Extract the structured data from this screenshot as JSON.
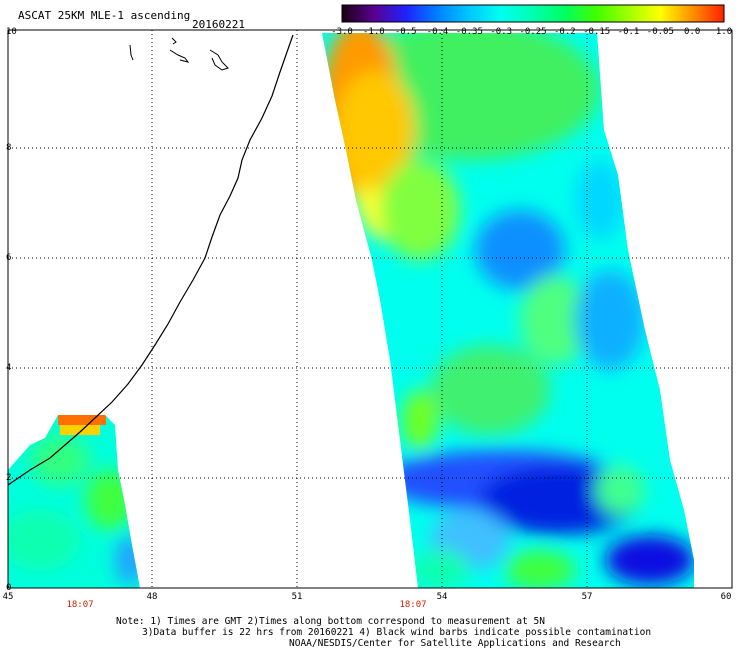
{
  "header": {
    "title": "ASCAT 25KM MLE-1 ascending",
    "date": "20160221"
  },
  "colorbar": {
    "labels": [
      "-3.0",
      "-1.0",
      "-0.5",
      "-0.4",
      "-0.35",
      "-0.3",
      "-0.25",
      "-0.2",
      "-0.15",
      "-0.1",
      "-0.05",
      "0.0",
      "1.0"
    ],
    "colors": [
      "#1a0010",
      "#5a0090",
      "#2020ff",
      "#0080ff",
      "#00c8ff",
      "#00ffee",
      "#00ffb0",
      "#00ff60",
      "#40ff00",
      "#a0ff00",
      "#ffff00",
      "#ff9000",
      "#ff2000"
    ]
  },
  "axes": {
    "x_ticks": [
      "45",
      "48",
      "51",
      "54",
      "57",
      "60"
    ],
    "y_ticks": [
      "0",
      "2",
      "4",
      "6",
      "8",
      "10"
    ],
    "time_labels": [
      {
        "x": "18:07",
        "pos": 47.5
      },
      {
        "x": "18:07",
        "pos": 53.5
      }
    ]
  },
  "notes": {
    "line1": "Note: 1) Times are GMT 2)Times along bottom correspond to measurement at 5N",
    "line2": "3)Data buffer is 22 hrs from 20160221 4) Black wind barbs indicate possible contamination",
    "line3": "NOAA/NESDIS/Center for Satellite Applications and Research"
  }
}
